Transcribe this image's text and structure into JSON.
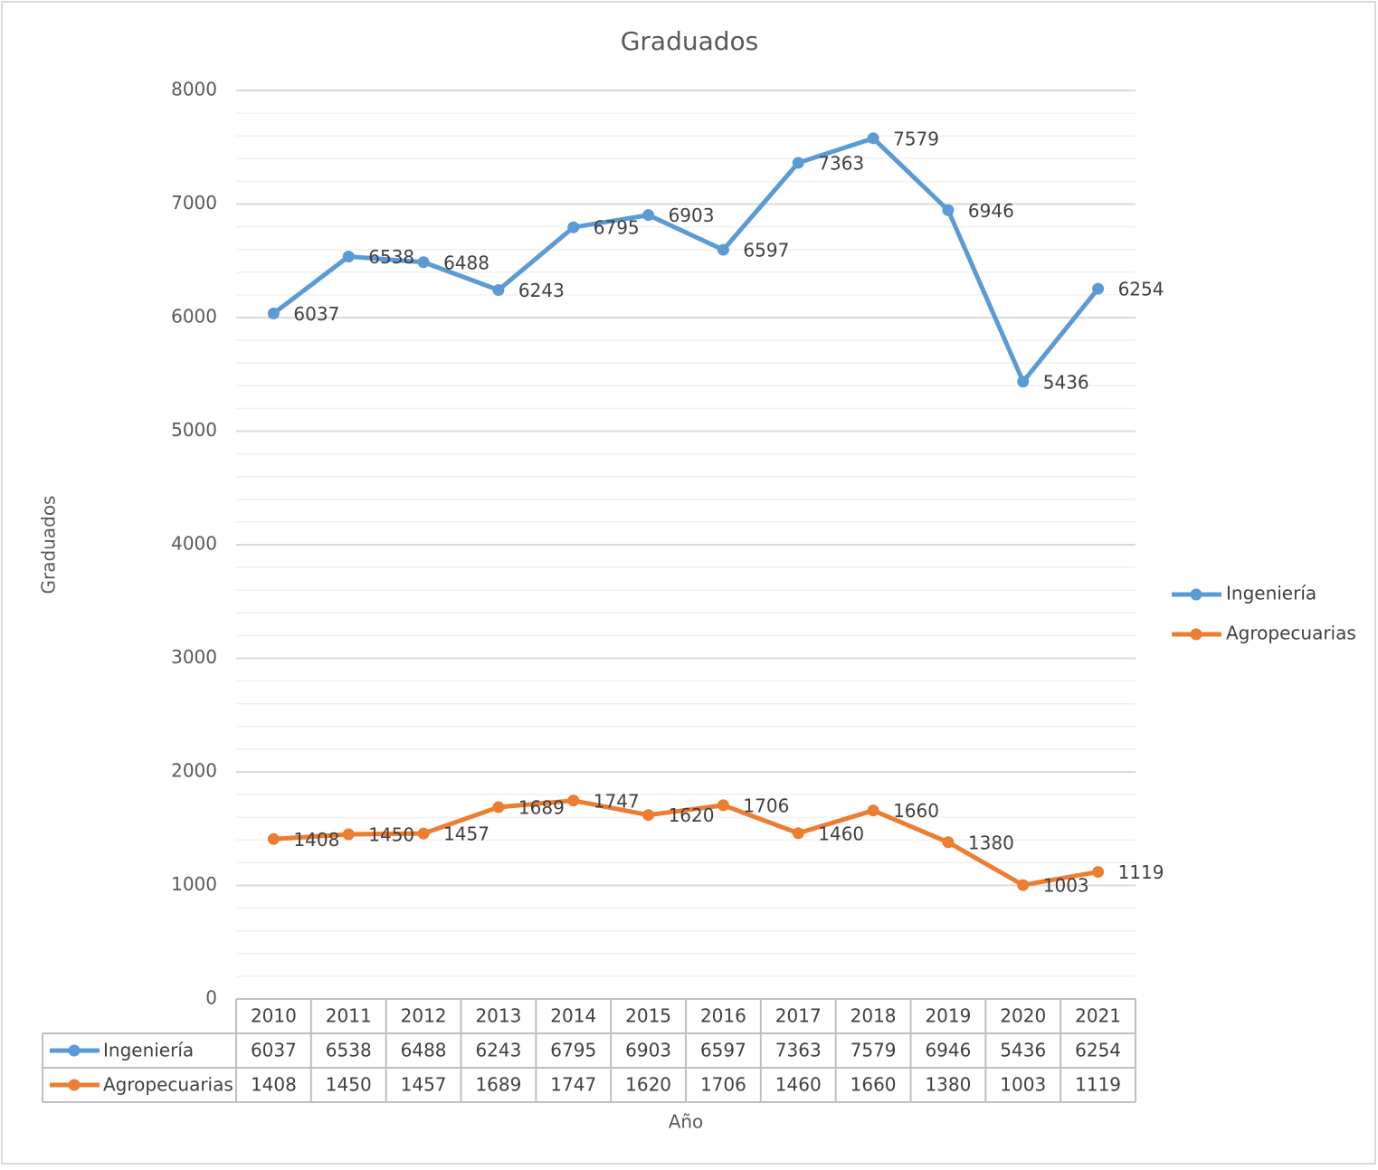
{
  "chart_data": {
    "type": "line",
    "title": "Graduados",
    "x_label": "Año",
    "y_label": "Graduados",
    "categories": [
      "2010",
      "2011",
      "2012",
      "2013",
      "2014",
      "2015",
      "2016",
      "2017",
      "2018",
      "2019",
      "2020",
      "2021"
    ],
    "series": [
      {
        "name": "Ingeniería",
        "color": "#5b9bd5",
        "values": [
          6037,
          6538,
          6488,
          6243,
          6795,
          6903,
          6597,
          7363,
          7579,
          6946,
          5436,
          6254
        ]
      },
      {
        "name": "Agropecuarias",
        "color": "#ed7d31",
        "values": [
          1408,
          1450,
          1457,
          1689,
          1747,
          1620,
          1706,
          1460,
          1660,
          1380,
          1003,
          1119
        ]
      }
    ],
    "ylim": [
      0,
      8000
    ],
    "yticks": [
      0,
      1000,
      2000,
      3000,
      4000,
      5000,
      6000,
      7000,
      8000
    ],
    "yminorticks": [
      200,
      400,
      600,
      800,
      1200,
      1400,
      1600,
      1800,
      2200,
      2400,
      2600,
      2800,
      3200,
      3400,
      3600,
      3800,
      4200,
      4400,
      4600,
      4800,
      5200,
      5400,
      5600,
      5800,
      6200,
      6400,
      6600,
      6800,
      7200,
      7400,
      7600,
      7800
    ],
    "grid": true,
    "legend": "right",
    "data_table": true
  }
}
